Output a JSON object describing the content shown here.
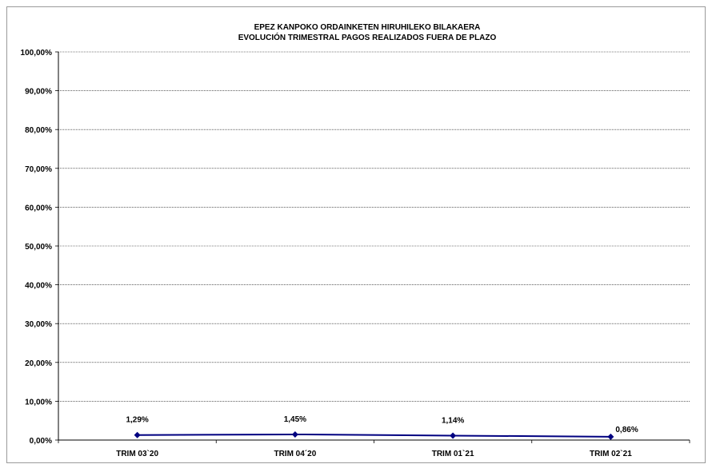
{
  "chart_data": {
    "type": "line",
    "title": "EPEZ KANPOKO ORDAINKETEN HIRUHILEKO BILAKAERA",
    "subtitle": "EVOLUCIÓN TRIMESTRAL PAGOS REALIZADOS FUERA DE PLAZO",
    "categories": [
      "TRIM 03`20",
      "TRIM 04´20",
      "TRIM 01`21",
      "TRIM 02`21"
    ],
    "series": [
      {
        "values": [
          1.29,
          1.45,
          1.14,
          0.86
        ],
        "labels": [
          "1,29%",
          "1,45%",
          "1,14%",
          "0,86%"
        ]
      }
    ],
    "ylim": [
      0,
      100
    ],
    "yticks": [
      0,
      10,
      20,
      30,
      40,
      50,
      60,
      70,
      80,
      90,
      100
    ],
    "ytick_labels": [
      "0,00%",
      "10,00%",
      "20,00%",
      "30,00%",
      "40,00%",
      "50,00%",
      "60,00%",
      "70,00%",
      "80,00%",
      "90,00%",
      "100,00%"
    ],
    "grid": true,
    "colors": {
      "line": "#000080",
      "grid": "#000000"
    }
  }
}
